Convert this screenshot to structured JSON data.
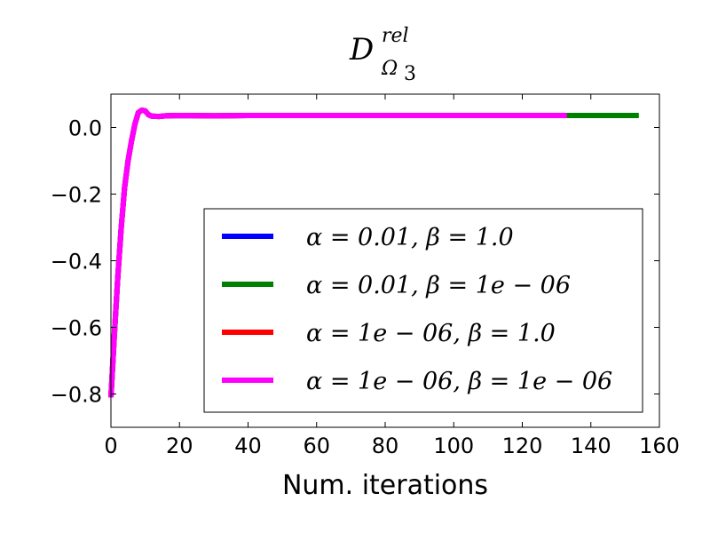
{
  "chart_data": {
    "type": "line",
    "title": {
      "main": "D",
      "superscript": "rel",
      "subscript_base": "Ω",
      "subscript_index": "3"
    },
    "xlabel": "Num. iterations",
    "ylabel": "",
    "xlim": [
      0,
      160
    ],
    "ylim": [
      -0.9,
      0.1
    ],
    "xticks": [
      0,
      20,
      40,
      60,
      80,
      100,
      120,
      140,
      160
    ],
    "xtick_labels": [
      "0",
      "20",
      "40",
      "60",
      "80",
      "100",
      "120",
      "140",
      "160"
    ],
    "yticks": [
      0.0,
      -0.2,
      -0.4,
      -0.6,
      -0.8
    ],
    "ytick_labels": [
      "0.0",
      "−0.2",
      "−0.4",
      "−0.6",
      "−0.8"
    ],
    "grid": false,
    "legend_position": "lower-right",
    "series": [
      {
        "name": "α = 0.01, β = 1.0",
        "color": "#0000ff",
        "points": [
          [
            0,
            -0.81
          ],
          [
            1,
            -0.62
          ],
          [
            2,
            -0.45
          ],
          [
            3,
            -0.3
          ],
          [
            4,
            -0.18
          ],
          [
            5,
            -0.1
          ],
          [
            6,
            -0.04
          ],
          [
            7,
            0.01
          ],
          [
            8,
            0.045
          ],
          [
            9,
            0.052
          ],
          [
            10,
            0.05
          ],
          [
            11,
            0.038
          ],
          [
            12,
            0.034
          ],
          [
            14,
            0.033
          ],
          [
            16,
            0.035
          ],
          [
            20,
            0.036
          ],
          [
            30,
            0.035
          ],
          [
            40,
            0.036
          ],
          [
            60,
            0.036
          ],
          [
            80,
            0.036
          ],
          [
            100,
            0.036
          ],
          [
            120,
            0.036
          ],
          [
            133,
            0.036
          ]
        ]
      },
      {
        "name": "α = 0.01, β = 1e − 06",
        "color": "#008000",
        "points": [
          [
            0,
            -0.81
          ],
          [
            1,
            -0.62
          ],
          [
            2,
            -0.45
          ],
          [
            3,
            -0.3
          ],
          [
            4,
            -0.18
          ],
          [
            5,
            -0.1
          ],
          [
            6,
            -0.04
          ],
          [
            7,
            0.01
          ],
          [
            8,
            0.045
          ],
          [
            9,
            0.052
          ],
          [
            10,
            0.05
          ],
          [
            11,
            0.038
          ],
          [
            12,
            0.034
          ],
          [
            14,
            0.033
          ],
          [
            16,
            0.035
          ],
          [
            20,
            0.036
          ],
          [
            30,
            0.035
          ],
          [
            40,
            0.036
          ],
          [
            60,
            0.036
          ],
          [
            80,
            0.036
          ],
          [
            100,
            0.036
          ],
          [
            120,
            0.036
          ],
          [
            140,
            0.036
          ],
          [
            154,
            0.036
          ]
        ]
      },
      {
        "name": "α = 1e − 06, β = 1.0",
        "color": "#ff0000",
        "points": [
          [
            0,
            -0.81
          ],
          [
            1,
            -0.62
          ],
          [
            2,
            -0.45
          ],
          [
            3,
            -0.3
          ],
          [
            4,
            -0.18
          ],
          [
            5,
            -0.1
          ],
          [
            6,
            -0.04
          ],
          [
            7,
            0.01
          ],
          [
            8,
            0.045
          ],
          [
            9,
            0.052
          ],
          [
            10,
            0.05
          ],
          [
            11,
            0.038
          ],
          [
            12,
            0.034
          ],
          [
            14,
            0.033
          ],
          [
            16,
            0.035
          ],
          [
            20,
            0.036
          ],
          [
            30,
            0.035
          ],
          [
            40,
            0.036
          ],
          [
            60,
            0.036
          ],
          [
            80,
            0.036
          ],
          [
            100,
            0.036
          ],
          [
            120,
            0.036
          ],
          [
            133,
            0.036
          ]
        ]
      },
      {
        "name": "α = 1e − 06, β = 1e − 06",
        "color": "#ff00ff",
        "points": [
          [
            0,
            -0.81
          ],
          [
            1,
            -0.62
          ],
          [
            2,
            -0.45
          ],
          [
            3,
            -0.3
          ],
          [
            4,
            -0.18
          ],
          [
            5,
            -0.1
          ],
          [
            6,
            -0.04
          ],
          [
            7,
            0.01
          ],
          [
            8,
            0.045
          ],
          [
            9,
            0.052
          ],
          [
            10,
            0.05
          ],
          [
            11,
            0.038
          ],
          [
            12,
            0.034
          ],
          [
            14,
            0.033
          ],
          [
            16,
            0.035
          ],
          [
            20,
            0.036
          ],
          [
            30,
            0.035
          ],
          [
            40,
            0.036
          ],
          [
            60,
            0.036
          ],
          [
            80,
            0.036
          ],
          [
            100,
            0.036
          ],
          [
            120,
            0.036
          ],
          [
            133,
            0.036
          ]
        ]
      }
    ]
  }
}
